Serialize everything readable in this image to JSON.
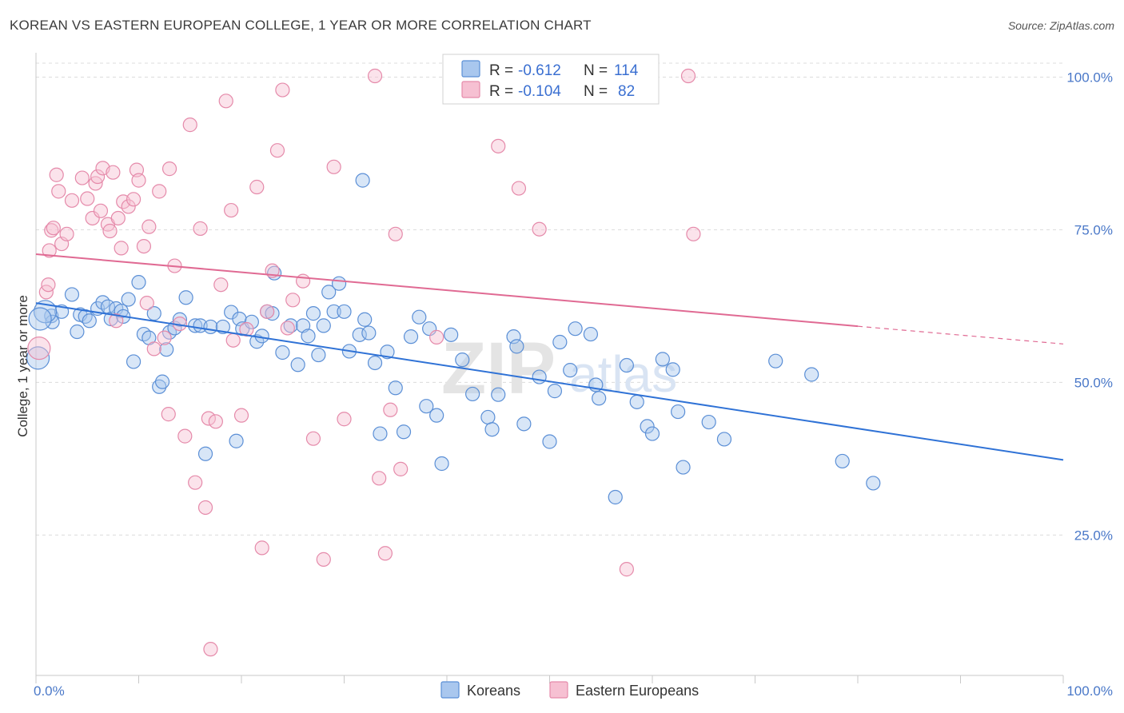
{
  "title": "KOREAN VS EASTERN EUROPEAN COLLEGE, 1 YEAR OR MORE CORRELATION CHART",
  "source": "Source: ZipAtlas.com",
  "watermark": {
    "zip": "ZIP",
    "atlas": "atlas"
  },
  "colors": {
    "koreans_fill": "#a9c7ee",
    "koreans_stroke": "#5b8fd6",
    "koreans_line": "#2f72d6",
    "eastern_fill": "#f6c0d2",
    "eastern_stroke": "#e58aaa",
    "eastern_line": "#e06a93",
    "axis_text": "#4a78c8",
    "grid": "#dcdcdc"
  },
  "legend": {
    "rows": [
      {
        "r_label": "R =",
        "r_value": "-0.612",
        "n_label": "N =",
        "n_value": "114"
      },
      {
        "r_label": "R =",
        "r_value": "-0.104",
        "n_label": "N =",
        "n_value": "82"
      }
    ]
  },
  "bottom_legend": [
    "Koreans",
    "Eastern Europeans"
  ],
  "chart_data": {
    "type": "scatter",
    "xlabel": "",
    "ylabel": "College, 1 year or more",
    "xlim": [
      0,
      100
    ],
    "ylim": [
      2,
      104
    ],
    "x_tick_labels": [
      "0.0%",
      "100.0%"
    ],
    "y_ticks": [
      25,
      50,
      75,
      100
    ],
    "y_tick_labels": [
      "25.0%",
      "50.0%",
      "75.0%",
      "100.0%"
    ],
    "grid": true,
    "legend_position": "top-center",
    "series": [
      {
        "name": "Koreans",
        "trend": {
          "x0": 0,
          "y0": 63.0,
          "x1": 100,
          "y1": 37.3
        },
        "points": [
          [
            1.5,
            60.9
          ],
          [
            1.6,
            59.9
          ],
          [
            2.5,
            61.6
          ],
          [
            3.5,
            64.4
          ],
          [
            4,
            58.3
          ],
          [
            4.3,
            61.1
          ],
          [
            4.8,
            60.8
          ],
          [
            5.2,
            60.1
          ],
          [
            6,
            62.1
          ],
          [
            6.5,
            63.1
          ],
          [
            7,
            62.4
          ],
          [
            7.3,
            60.4
          ],
          [
            7.8,
            62.1
          ],
          [
            8.3,
            61.7
          ],
          [
            8.5,
            60.8
          ],
          [
            9,
            63.6
          ],
          [
            9.5,
            53.4
          ],
          [
            10,
            66.4
          ],
          [
            10.5,
            57.9
          ],
          [
            11,
            57.3
          ],
          [
            11.5,
            61.3
          ],
          [
            12,
            49.3
          ],
          [
            12.3,
            50.1
          ],
          [
            12.7,
            55.4
          ],
          [
            13,
            58.2
          ],
          [
            13.5,
            58.9
          ],
          [
            14,
            60.3
          ],
          [
            14.6,
            63.9
          ],
          [
            15.5,
            59.3
          ],
          [
            16,
            59.3
          ],
          [
            16.5,
            38.3
          ],
          [
            17,
            59.1
          ],
          [
            18.2,
            59.1
          ],
          [
            19,
            61.5
          ],
          [
            19.5,
            40.4
          ],
          [
            19.8,
            60.4
          ],
          [
            20.1,
            58.8
          ],
          [
            21,
            59.9
          ],
          [
            21.5,
            56.7
          ],
          [
            22,
            57.6
          ],
          [
            22.5,
            61.6
          ],
          [
            23,
            61.3
          ],
          [
            23.2,
            67.9
          ],
          [
            24,
            54.9
          ],
          [
            24.8,
            59.3
          ],
          [
            25.5,
            52.9
          ],
          [
            26,
            59.3
          ],
          [
            26.5,
            57.6
          ],
          [
            27,
            61.3
          ],
          [
            27.5,
            54.5
          ],
          [
            28,
            59.3
          ],
          [
            28.5,
            64.8
          ],
          [
            29,
            61.6
          ],
          [
            29.5,
            66.2
          ],
          [
            30,
            61.6
          ],
          [
            30.5,
            55.1
          ],
          [
            31.5,
            57.8
          ],
          [
            31.8,
            83.1
          ],
          [
            32,
            60.3
          ],
          [
            32.4,
            58.1
          ],
          [
            33,
            53.2
          ],
          [
            33.5,
            41.6
          ],
          [
            34.2,
            55.0
          ],
          [
            35,
            49.1
          ],
          [
            35.8,
            41.9
          ],
          [
            36.5,
            57.5
          ],
          [
            37.3,
            60.7
          ],
          [
            38,
            46.1
          ],
          [
            38.3,
            58.8
          ],
          [
            39,
            44.6
          ],
          [
            39.5,
            36.7
          ],
          [
            40.4,
            57.8
          ],
          [
            41.5,
            53.7
          ],
          [
            42.5,
            48.1
          ],
          [
            44,
            44.3
          ],
          [
            44.4,
            42.3
          ],
          [
            45,
            48.0
          ],
          [
            46.5,
            57.5
          ],
          [
            46.8,
            55.9
          ],
          [
            47.5,
            43.2
          ],
          [
            49,
            50.9
          ],
          [
            50,
            40.3
          ],
          [
            50.5,
            48.6
          ],
          [
            51,
            56.6
          ],
          [
            52,
            52.0
          ],
          [
            52.5,
            58.8
          ],
          [
            54,
            57.9
          ],
          [
            54.5,
            49.6
          ],
          [
            54.8,
            47.4
          ],
          [
            56.4,
            31.2
          ],
          [
            57.5,
            52.8
          ],
          [
            58.5,
            46.8
          ],
          [
            59.5,
            42.8
          ],
          [
            60,
            41.6
          ],
          [
            61,
            53.8
          ],
          [
            62,
            52.1
          ],
          [
            62.5,
            45.2
          ],
          [
            63,
            36.1
          ],
          [
            65.5,
            43.5
          ],
          [
            67,
            40.7
          ],
          [
            72,
            53.5
          ],
          [
            75.5,
            51.3
          ],
          [
            78.5,
            37.1
          ],
          [
            81.5,
            33.5
          ]
        ],
        "large_points": [
          [
            0.2,
            54.0
          ],
          [
            0.9,
            61.6
          ],
          [
            0.4,
            60.4
          ]
        ]
      },
      {
        "name": "Eastern Europeans",
        "trend": {
          "x0": 0,
          "y0": 71.0,
          "x1": 80,
          "y1": 59.2
        },
        "trend_dashed": {
          "x0": 80,
          "y0": 59.2,
          "x1": 100,
          "y1": 56.3
        },
        "points": [
          [
            1,
            64.8
          ],
          [
            1.3,
            71.6
          ],
          [
            1.5,
            74.9
          ],
          [
            1.7,
            75.3
          ],
          [
            2,
            84.0
          ],
          [
            2.2,
            81.3
          ],
          [
            2.5,
            72.7
          ],
          [
            3,
            74.3
          ],
          [
            3.5,
            79.8
          ],
          [
            4.5,
            83.5
          ],
          [
            5,
            80.1
          ],
          [
            5.5,
            76.9
          ],
          [
            5.8,
            82.6
          ],
          [
            6,
            83.7
          ],
          [
            6.3,
            78.1
          ],
          [
            6.5,
            85.1
          ],
          [
            7,
            75.9
          ],
          [
            7.2,
            74.8
          ],
          [
            7.5,
            84.4
          ],
          [
            7.8,
            60.1
          ],
          [
            8,
            76.9
          ],
          [
            8.3,
            72.0
          ],
          [
            8.5,
            79.6
          ],
          [
            9,
            78.8
          ],
          [
            9.5,
            80.0
          ],
          [
            9.8,
            84.8
          ],
          [
            10,
            83.1
          ],
          [
            10.5,
            72.3
          ],
          [
            10.8,
            63.0
          ],
          [
            11,
            75.5
          ],
          [
            11.5,
            55.5
          ],
          [
            12,
            81.3
          ],
          [
            12.5,
            57.3
          ],
          [
            12.9,
            44.8
          ],
          [
            13,
            85.0
          ],
          [
            13.5,
            69.1
          ],
          [
            14,
            59.6
          ],
          [
            14.5,
            41.2
          ],
          [
            15,
            92.2
          ],
          [
            15.5,
            33.6
          ],
          [
            16,
            75.2
          ],
          [
            16.5,
            29.5
          ],
          [
            16.8,
            44.1
          ],
          [
            17,
            6.3
          ],
          [
            17.5,
            43.6
          ],
          [
            18,
            66.0
          ],
          [
            18.5,
            96.1
          ],
          [
            19,
            78.2
          ],
          [
            19.2,
            56.9
          ],
          [
            20,
            44.6
          ],
          [
            20.5,
            58.7
          ],
          [
            21.5,
            82.0
          ],
          [
            22,
            22.9
          ],
          [
            22.5,
            61.6
          ],
          [
            23,
            68.3
          ],
          [
            23.5,
            88.0
          ],
          [
            24,
            97.9
          ],
          [
            24.5,
            58.9
          ],
          [
            25,
            63.5
          ],
          [
            26,
            66.6
          ],
          [
            27,
            40.8
          ],
          [
            28,
            21.0
          ],
          [
            29,
            85.3
          ],
          [
            30,
            44.0
          ],
          [
            33,
            100.2
          ],
          [
            33.4,
            34.3
          ],
          [
            34,
            22.0
          ],
          [
            34.5,
            45.5
          ],
          [
            35,
            74.3
          ],
          [
            35.5,
            35.8
          ],
          [
            39,
            57.4
          ],
          [
            45,
            88.7
          ],
          [
            47,
            81.8
          ],
          [
            49,
            75.1
          ],
          [
            57.5,
            19.4
          ],
          [
            63.5,
            100.2
          ],
          [
            64,
            74.3
          ],
          [
            1.2,
            66.0
          ]
        ],
        "large_points": [
          [
            0.3,
            55.6
          ]
        ]
      }
    ]
  }
}
